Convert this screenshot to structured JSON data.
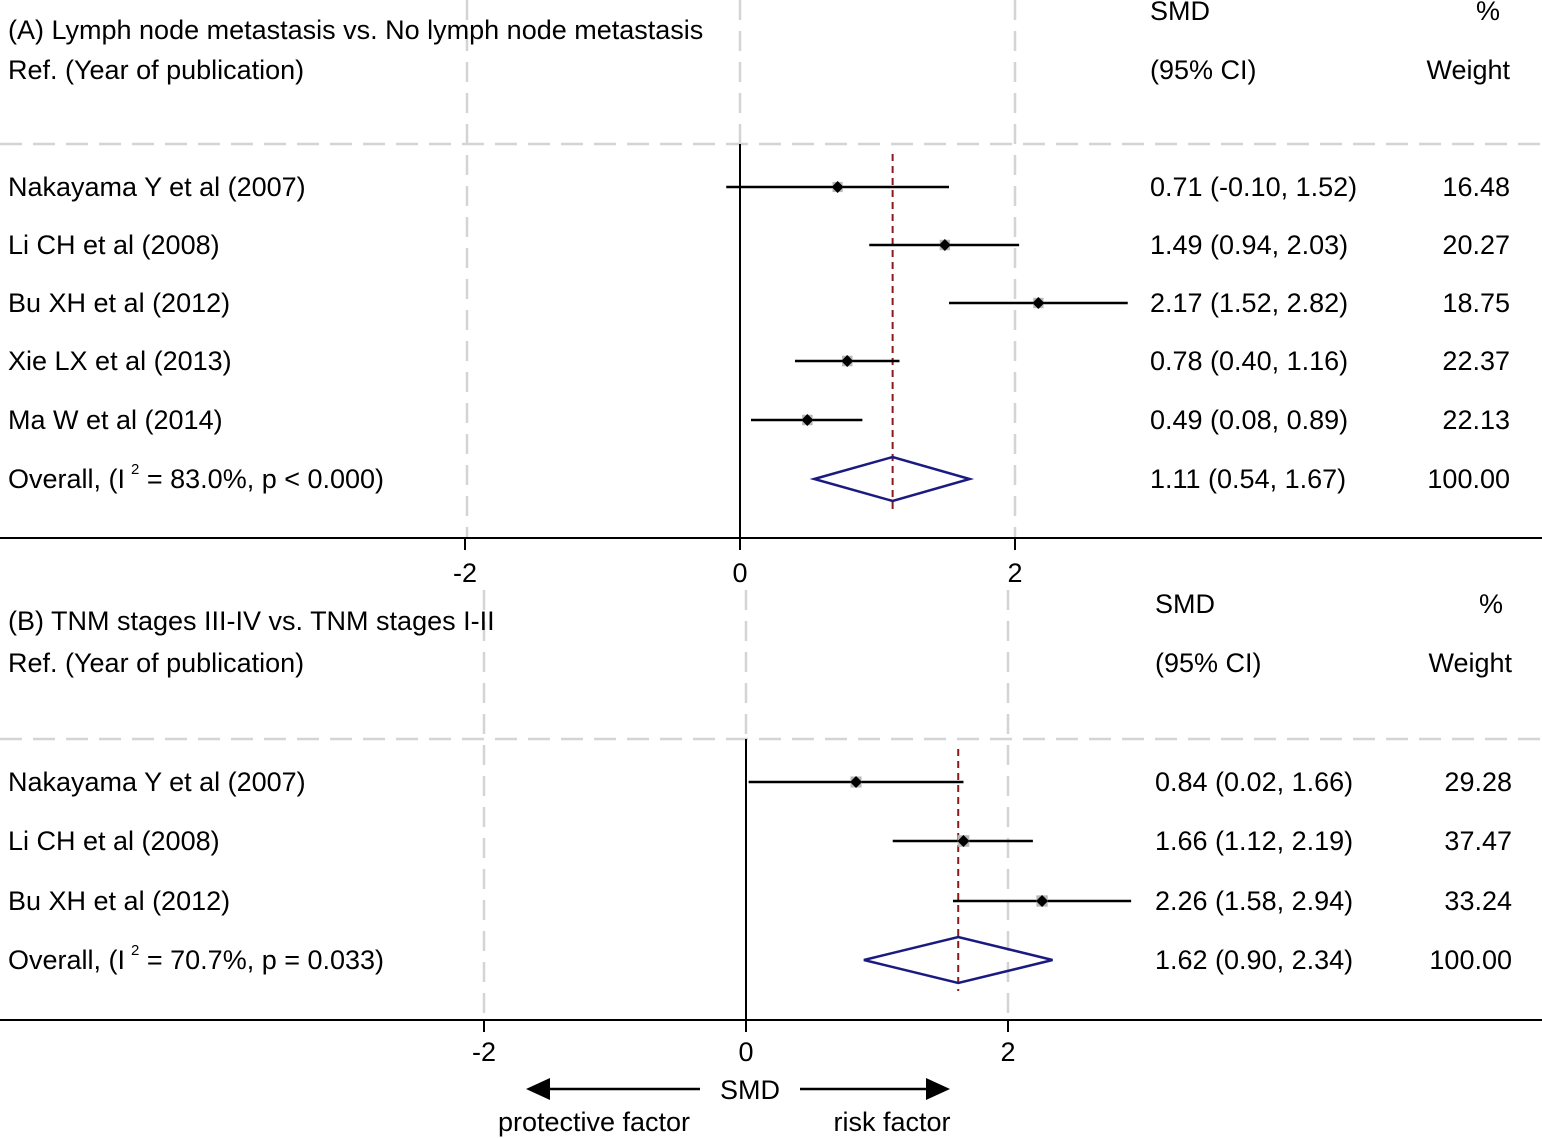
{
  "chart_data": [
    {
      "type": "forest",
      "panel": "A",
      "title": "(A) Lymph node metastasis vs. No lymph node metastasis",
      "ref_header": "Ref. (Year of publication)",
      "smd_header": [
        "SMD",
        "(95% CI)"
      ],
      "weight_header": [
        "%",
        "Weight"
      ],
      "xticks": [
        -2,
        0,
        2
      ],
      "xtick_labels": [
        "-2",
        "0",
        "2"
      ],
      "studies": [
        {
          "label": "Nakayama Y et al (2007)",
          "smd": 0.71,
          "lo": -0.1,
          "hi": 1.52,
          "ci_text": "0.71 (-0.10, 1.52)",
          "weight": 16.48,
          "weight_text": "16.48"
        },
        {
          "label": "Li CH et al (2008)",
          "smd": 1.49,
          "lo": 0.94,
          "hi": 2.03,
          "ci_text": "1.49 (0.94, 2.03)",
          "weight": 20.27,
          "weight_text": "20.27"
        },
        {
          "label": "Bu XH et al (2012)",
          "smd": 2.17,
          "lo": 1.52,
          "hi": 2.82,
          "ci_text": "2.17 (1.52, 2.82)",
          "weight": 18.75,
          "weight_text": "18.75"
        },
        {
          "label": "Xie LX et al (2013)",
          "smd": 0.78,
          "lo": 0.4,
          "hi": 1.16,
          "ci_text": "0.78 (0.40, 1.16)",
          "weight": 22.37,
          "weight_text": "22.37"
        },
        {
          "label": "Ma W et al (2014)",
          "smd": 0.49,
          "lo": 0.08,
          "hi": 0.89,
          "ci_text": "0.49 (0.08, 0.89)",
          "weight": 22.13,
          "weight_text": "22.13"
        }
      ],
      "overall": {
        "label_start": "Overall,   (I",
        "sup": "2",
        "label_end": " = 83.0%, p < 0.000)",
        "smd": 1.11,
        "lo": 0.54,
        "hi": 1.67,
        "ci_text": "1.11 (0.54, 1.67)",
        "weight_text": "100.00"
      }
    },
    {
      "type": "forest",
      "panel": "B",
      "title": "(B) TNM stages III-IV vs. TNM stages I-II",
      "ref_header": "Ref. (Year of publication)",
      "smd_header": [
        "SMD",
        "(95% CI)"
      ],
      "weight_header": [
        "%",
        "Weight"
      ],
      "xticks": [
        -2,
        0,
        2
      ],
      "xtick_labels": [
        "-2",
        "0",
        "2"
      ],
      "studies": [
        {
          "label": "Nakayama Y et al (2007)",
          "smd": 0.84,
          "lo": 0.02,
          "hi": 1.66,
          "ci_text": "0.84 (0.02, 1.66)",
          "weight": 29.28,
          "weight_text": "29.28"
        },
        {
          "label": "Li CH et al (2008)",
          "smd": 1.66,
          "lo": 1.12,
          "hi": 2.19,
          "ci_text": "1.66 (1.12, 2.19)",
          "weight": 37.47,
          "weight_text": "37.47"
        },
        {
          "label": "Bu XH et al (2012)",
          "smd": 2.26,
          "lo": 1.58,
          "hi": 2.94,
          "ci_text": "2.26 (1.58, 2.94)",
          "weight": 33.24,
          "weight_text": "33.24"
        }
      ],
      "overall": {
        "label_start": "Overall,  (I",
        "sup": "2",
        "label_end": " = 70.7%, p = 0.033)",
        "smd": 1.62,
        "lo": 0.9,
        "hi": 2.34,
        "ci_text": "1.62 (0.90, 2.34)",
        "weight_text": "100.00"
      }
    }
  ],
  "footer": {
    "axis_label": "SMD",
    "left_label": "protective factor",
    "right_label": "risk factor"
  },
  "colors": {
    "dashed_grid": "#d4d4d4",
    "overall_line": "#8b1a1a",
    "diamond": "#1a1a80",
    "weight_box": "#b8b8b8",
    "line": "#000000"
  }
}
